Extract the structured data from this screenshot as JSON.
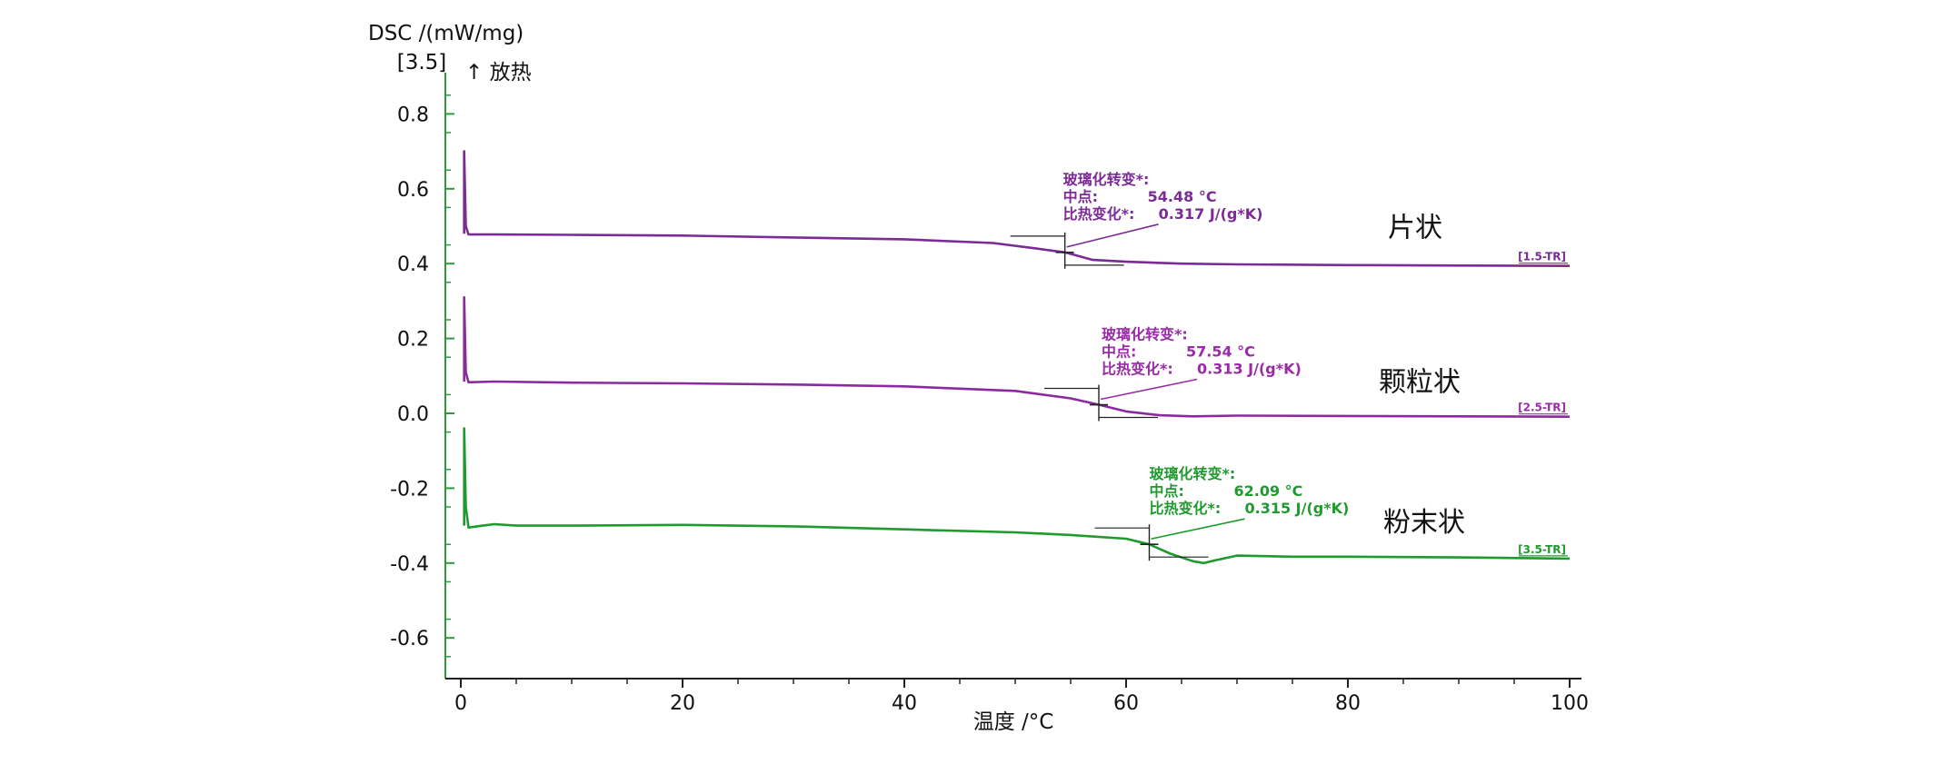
{
  "chart_data": {
    "type": "line",
    "ylabel": "DSC /(mW/mg)",
    "ylabel_note": "[3.5]",
    "exo_label": "↑ 放热",
    "xlabel": "温度 /°C",
    "xlim": [
      0,
      100
    ],
    "ylim": [
      -0.7,
      0.9
    ],
    "x_ticks": [
      "0",
      "20",
      "40",
      "60",
      "80",
      "100"
    ],
    "y_ticks": [
      "0.8",
      "0.6",
      "0.4",
      "0.2",
      "0.0",
      "-0.2",
      "-0.4",
      "-0.6"
    ],
    "grid": false,
    "series": [
      {
        "name": "片状",
        "tag": "[1.5-TR]",
        "color": "#7b2a96",
        "ann_color": "#7b2a96",
        "annotation": {
          "title": "玻璃化转变*:",
          "midpoint_label": "中点:",
          "midpoint_value": "54.48 °C",
          "cp_label": "比热变化*:",
          "cp_value": "0.317 J/(g*K)"
        },
        "midpoint": 54.48,
        "points": [
          [
            0.3,
            0.48
          ],
          [
            0.3,
            0.7
          ],
          [
            0.45,
            0.5
          ],
          [
            0.7,
            0.478
          ],
          [
            3,
            0.478
          ],
          [
            10,
            0.477
          ],
          [
            20,
            0.475
          ],
          [
            30,
            0.47
          ],
          [
            40,
            0.465
          ],
          [
            48,
            0.455
          ],
          [
            52,
            0.44
          ],
          [
            54.48,
            0.43
          ],
          [
            57,
            0.41
          ],
          [
            60,
            0.405
          ],
          [
            65,
            0.4
          ],
          [
            70,
            0.398
          ],
          [
            80,
            0.396
          ],
          [
            90,
            0.395
          ],
          [
            100,
            0.394
          ]
        ]
      },
      {
        "name": "颗粒状",
        "tag": "[2.5-TR]",
        "color": "#8b2aa0",
        "ann_color": "#9a2aa8",
        "annotation": {
          "title": "玻璃化转变*:",
          "midpoint_label": "中点:",
          "midpoint_value": "57.54 °C",
          "cp_label": "比热变化*:",
          "cp_value": "0.313 J/(g*K)"
        },
        "midpoint": 57.54,
        "points": [
          [
            0.3,
            0.085
          ],
          [
            0.3,
            0.31
          ],
          [
            0.45,
            0.11
          ],
          [
            0.7,
            0.083
          ],
          [
            3,
            0.085
          ],
          [
            10,
            0.082
          ],
          [
            20,
            0.08
          ],
          [
            30,
            0.077
          ],
          [
            40,
            0.072
          ],
          [
            50,
            0.06
          ],
          [
            55,
            0.04
          ],
          [
            57.54,
            0.023
          ],
          [
            60,
            0.005
          ],
          [
            63,
            -0.005
          ],
          [
            66,
            -0.008
          ],
          [
            70,
            -0.006
          ],
          [
            80,
            -0.007
          ],
          [
            90,
            -0.008
          ],
          [
            100,
            -0.009
          ]
        ]
      },
      {
        "name": "粉末状",
        "tag": "[3.5-TR]",
        "color": "#1f9a2e",
        "ann_color": "#1f9a2e",
        "annotation": {
          "title": "玻璃化转变*:",
          "midpoint_label": "中点:",
          "midpoint_value": "62.09 °C",
          "cp_label": "比热变化*:",
          "cp_value": "0.315 J/(g*K)"
        },
        "midpoint": 62.09,
        "points": [
          [
            0.3,
            -0.3
          ],
          [
            0.3,
            -0.04
          ],
          [
            0.45,
            -0.25
          ],
          [
            0.7,
            -0.305
          ],
          [
            2,
            -0.3
          ],
          [
            3,
            -0.296
          ],
          [
            5,
            -0.3
          ],
          [
            10,
            -0.3
          ],
          [
            20,
            -0.298
          ],
          [
            30,
            -0.302
          ],
          [
            40,
            -0.31
          ],
          [
            50,
            -0.318
          ],
          [
            55,
            -0.325
          ],
          [
            60,
            -0.335
          ],
          [
            62.09,
            -0.35
          ],
          [
            64,
            -0.375
          ],
          [
            66,
            -0.395
          ],
          [
            67,
            -0.4
          ],
          [
            68,
            -0.393
          ],
          [
            70,
            -0.38
          ],
          [
            75,
            -0.383
          ],
          [
            80,
            -0.383
          ],
          [
            90,
            -0.385
          ],
          [
            100,
            -0.388
          ]
        ]
      }
    ]
  }
}
